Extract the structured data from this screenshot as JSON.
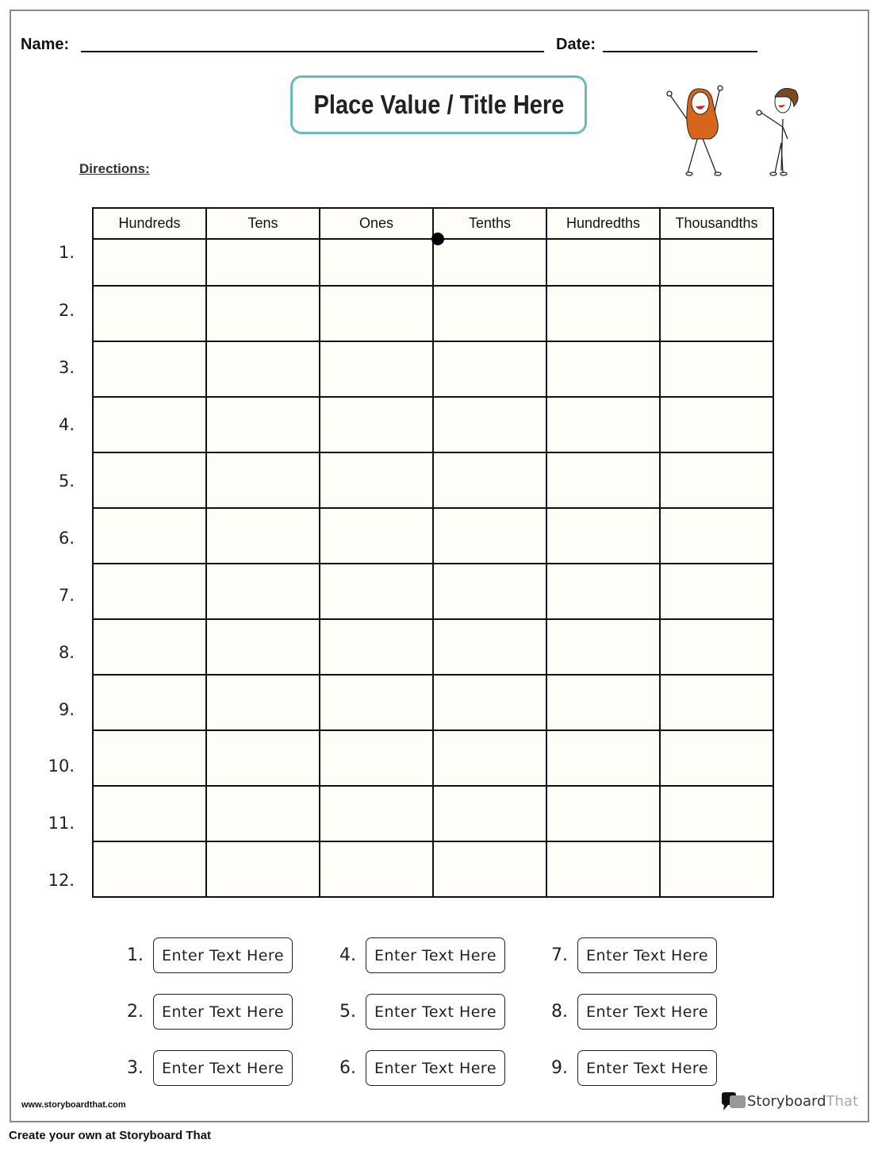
{
  "header": {
    "name_label": "Name:",
    "date_label": "Date:"
  },
  "title": "Place Value / Title Here",
  "directions_label": "Directions:",
  "table": {
    "columns": [
      "Hundreds",
      "Tens",
      "Ones",
      "Tenths",
      "Hundredths",
      "Thousandths"
    ],
    "row_labels": [
      "1.",
      "2.",
      "3.",
      "4.",
      "5.",
      "6.",
      "7.",
      "8.",
      "9.",
      "10.",
      "11.",
      "12."
    ]
  },
  "answers": [
    {
      "num": "1.",
      "text": "Enter Text Here"
    },
    {
      "num": "2.",
      "text": "Enter Text Here"
    },
    {
      "num": "3.",
      "text": "Enter Text Here"
    },
    {
      "num": "4.",
      "text": "Enter Text Here"
    },
    {
      "num": "5.",
      "text": "Enter Text Here"
    },
    {
      "num": "6.",
      "text": "Enter Text Here"
    },
    {
      "num": "7.",
      "text": "Enter Text Here"
    },
    {
      "num": "8.",
      "text": "Enter Text Here"
    },
    {
      "num": "9.",
      "text": "Enter Text Here"
    }
  ],
  "footer": {
    "url": "www.storyboardthat.com",
    "logo_text_a": "Storyboard",
    "logo_text_b": "That",
    "create_text": "Create your own at Storyboard That"
  },
  "colors": {
    "title_border": "#6bbcb8",
    "character_orange": "#d9651c"
  }
}
